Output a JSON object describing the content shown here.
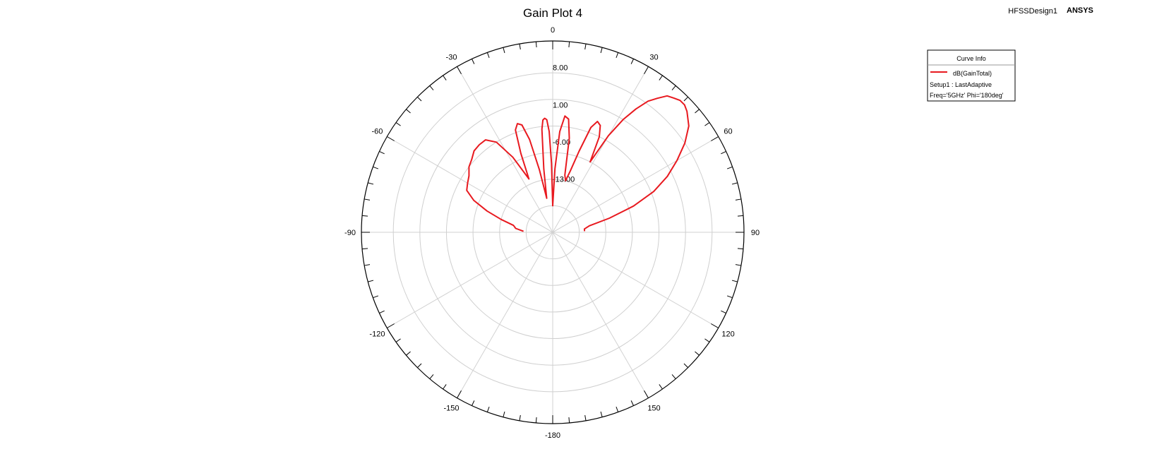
{
  "header": {
    "design_name": "HFSSDesign1",
    "brand": "ANSYS"
  },
  "legend": {
    "title": "Curve Info",
    "entries": [
      {
        "label": "dB(GainTotal)",
        "color": "#e8191f"
      }
    ],
    "lines": [
      "Setup1 : LastAdaptive",
      "Freq='5GHz' Phi='180deg'"
    ]
  },
  "chart_data": {
    "type": "polar",
    "title": "Gain Plot 4",
    "radial_axis": {
      "min": -23,
      "max": 13,
      "labels": [
        "-13.00",
        "-6.00",
        "1.00",
        "8.00"
      ],
      "label_values": [
        -13,
        -6,
        1,
        8
      ],
      "ring_values": [
        -18,
        -13,
        -8,
        -3,
        2,
        7,
        13
      ],
      "gridlines": true
    },
    "angular_axis": {
      "zero_location": "top",
      "direction": "clockwise",
      "range": [
        -180,
        180
      ],
      "tick_labels": [
        "0",
        "30",
        "60",
        "90",
        "120",
        "150",
        "-180",
        "-150",
        "-120",
        "-90",
        "-60",
        "-30"
      ],
      "tick_angles": [
        0,
        30,
        60,
        90,
        120,
        150,
        180,
        -150,
        -120,
        -90,
        -60,
        -30
      ],
      "spoke_step": 30,
      "minor_tick_step": 5
    },
    "series": [
      {
        "name": "dB(GainTotal)",
        "color": "#e8191f",
        "theta": [
          -88,
          -84,
          -80,
          -76,
          -72,
          -68,
          -64,
          -60,
          -56,
          -52,
          -48,
          -44,
          -40,
          -36,
          -32,
          -28,
          -24,
          -22,
          -20,
          -18,
          -16,
          -14,
          -12,
          -10,
          -8,
          -6,
          -5,
          -4,
          -3,
          -2,
          -1,
          0,
          2,
          4,
          6,
          8,
          10,
          12,
          14,
          16,
          18,
          20,
          22,
          24,
          26,
          28,
          30,
          32,
          34,
          36,
          38,
          40,
          42,
          44,
          46,
          48,
          52,
          56,
          60,
          64,
          68,
          72,
          76,
          80,
          84,
          88
        ],
        "r": [
          -17.5,
          -16,
          -15.5,
          -13,
          -10,
          -7,
          -5,
          -4.5,
          -4,
          -3,
          -2.5,
          -1.7,
          -1.5,
          -1.5,
          -3,
          -7,
          -12,
          -7,
          -2.5,
          -1.5,
          -2,
          -5,
          -11,
          -16.5,
          -11,
          -3.5,
          -1.8,
          -1.5,
          -1.8,
          -4,
          -10,
          -18,
          -11,
          -4,
          -1,
          -1.5,
          -5,
          -12,
          -13,
          -11,
          -7,
          -2,
          -0.5,
          -1,
          -3,
          -8,
          -2,
          2,
          5,
          7.5,
          9,
          10.5,
          11,
          11.5,
          11.5,
          11,
          9.5,
          7,
          4,
          1,
          -2.5,
          -7,
          -12,
          -16,
          -17,
          -17
        ]
      }
    ]
  }
}
